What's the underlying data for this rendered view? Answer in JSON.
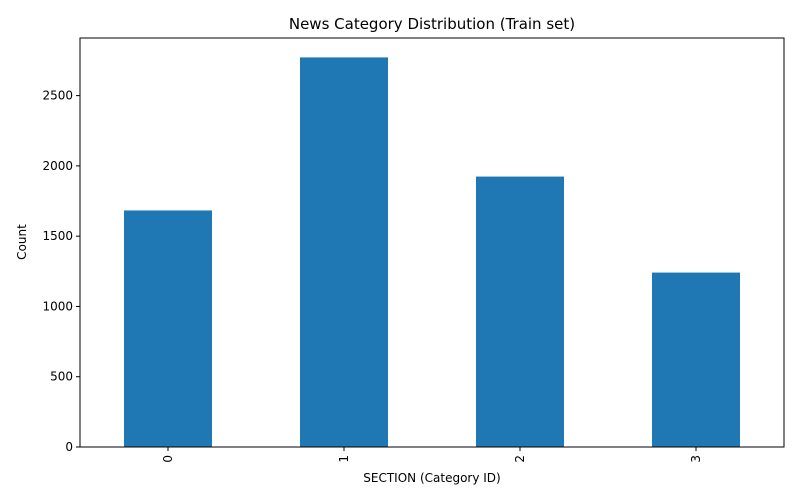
{
  "chart_data": {
    "type": "bar",
    "title": "News Category Distribution (Train set)",
    "xlabel": "SECTION (Category ID)",
    "ylabel": "Count",
    "categories": [
      "0",
      "1",
      "2",
      "3"
    ],
    "values": [
      1683,
      2772,
      1924,
      1241
    ],
    "ylim": [
      0,
      2910
    ],
    "yticks": [
      0,
      500,
      1000,
      1500,
      2000,
      2500
    ],
    "x_tick_rotation": 90,
    "grid": false,
    "legend": "none",
    "bar_color": "#1f77b4"
  }
}
